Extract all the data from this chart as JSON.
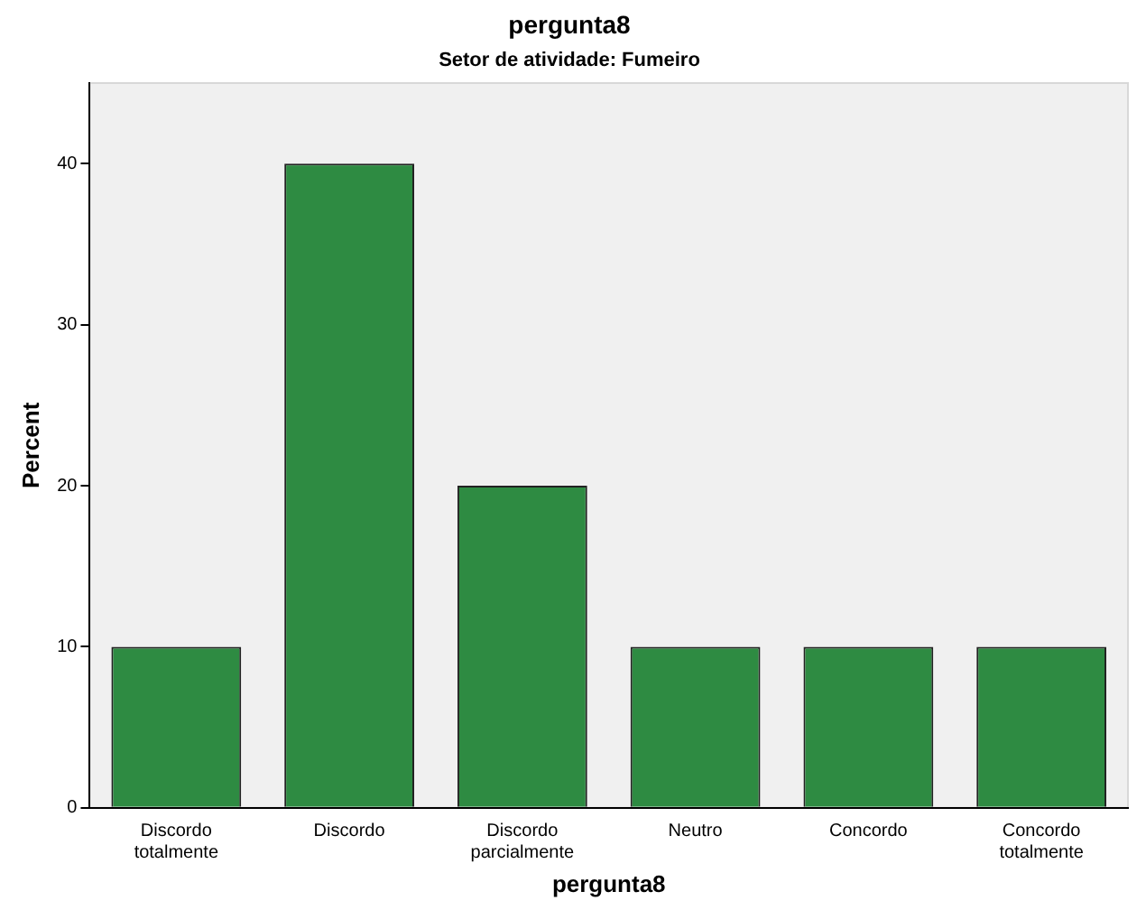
{
  "chart_data": {
    "type": "bar",
    "title": "pergunta8",
    "subtitle": "Setor de atividade: Fumeiro",
    "xlabel": "pergunta8",
    "ylabel": "Percent",
    "categories": [
      "Discordo totalmente",
      "Discordo",
      "Discordo parcialmente",
      "Neutro",
      "Concordo",
      "Concordo totalmente"
    ],
    "values": [
      10,
      40,
      20,
      10,
      10,
      10
    ],
    "color": "#2e8b42",
    "ylim": [
      0,
      45
    ],
    "yticks": [
      0,
      10,
      20,
      30,
      40
    ],
    "grid": false,
    "legend": false
  }
}
